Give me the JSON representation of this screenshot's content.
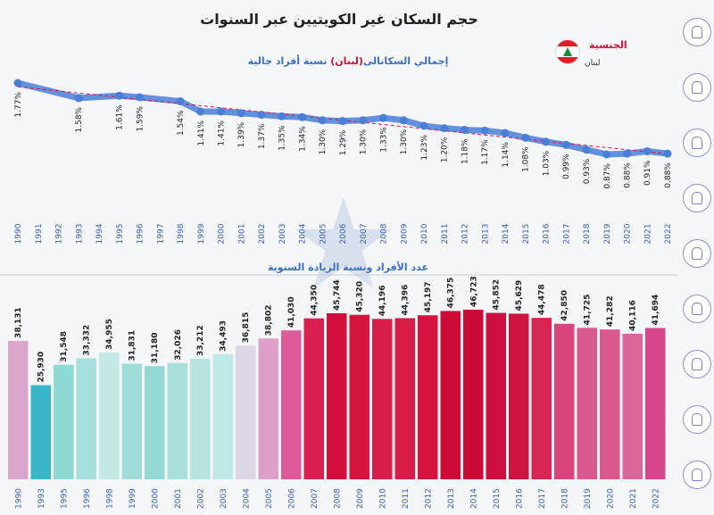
{
  "title": "حجم السكان غير الكويتيين عبر السنوات",
  "nationality": {
    "label": "الجنسية",
    "value": "لبنان"
  },
  "sidebar_icons": [
    "family-icon",
    "network-icon",
    "growth-chart-icon",
    "population-icon",
    "group-icon",
    "people-icon",
    "community-icon",
    "education-icon",
    "home-icon"
  ],
  "colors": {
    "line": "#4a7fd8",
    "trend": "#e0103a",
    "title": "#222222",
    "accent": "#d0103a"
  },
  "chart_data": [
    {
      "type": "line",
      "subtitle_prefix": "إجمالي السكان",
      "subtitle_mid": "الى",
      "subtitle_country": "(لبنان)",
      "subtitle_suffix": "نسبة أفراد جالية",
      "x": [
        "1990",
        "1991",
        "1992",
        "1993",
        "1994",
        "1995",
        "1996",
        "1997",
        "1998",
        "1999",
        "2000",
        "2001",
        "2002",
        "2003",
        "2004",
        "2005",
        "2006",
        "2007",
        "2008",
        "2009",
        "2010",
        "2011",
        "2012",
        "2013",
        "2014",
        "2015",
        "2016",
        "2017",
        "2018",
        "2019",
        "2020",
        "2021",
        "2022"
      ],
      "points": [
        {
          "year": "1990",
          "value": 1.77,
          "label": "1.77%"
        },
        {
          "year": "1993",
          "value": 1.58,
          "label": "1.58%"
        },
        {
          "year": "1995",
          "value": 1.61,
          "label": "1.61%"
        },
        {
          "year": "1996",
          "value": 1.59,
          "label": "1.59%"
        },
        {
          "year": "1998",
          "value": 1.54,
          "label": "1.54%"
        },
        {
          "year": "1999",
          "value": 1.41,
          "label": "1.41%"
        },
        {
          "year": "2000",
          "value": 1.41,
          "label": "1.41%"
        },
        {
          "year": "2001",
          "value": 1.39,
          "label": "1.39%"
        },
        {
          "year": "2002",
          "value": 1.37,
          "label": "1.37%"
        },
        {
          "year": "2003",
          "value": 1.35,
          "label": "1.35%"
        },
        {
          "year": "2004",
          "value": 1.34,
          "label": "1.34%"
        },
        {
          "year": "2005",
          "value": 1.3,
          "label": "1.30%"
        },
        {
          "year": "2006",
          "value": 1.29,
          "label": "1.29%"
        },
        {
          "year": "2007",
          "value": 1.3,
          "label": "1.30%"
        },
        {
          "year": "2008",
          "value": 1.33,
          "label": "1.33%"
        },
        {
          "year": "2009",
          "value": 1.3,
          "label": "1.30%"
        },
        {
          "year": "2010",
          "value": 1.23,
          "label": "1.23%"
        },
        {
          "year": "2011",
          "value": 1.2,
          "label": "1.20%"
        },
        {
          "year": "2012",
          "value": 1.18,
          "label": "1.18%"
        },
        {
          "year": "2013",
          "value": 1.17,
          "label": "1.17%"
        },
        {
          "year": "2014",
          "value": 1.14,
          "label": "1.14%"
        },
        {
          "year": "2015",
          "value": 1.08,
          "label": "1.08%"
        },
        {
          "year": "2016",
          "value": 1.03,
          "label": "1.03%"
        },
        {
          "year": "2017",
          "value": 0.99,
          "label": "0.99%"
        },
        {
          "year": "2018",
          "value": 0.93,
          "label": "0.93%"
        },
        {
          "year": "2019",
          "value": 0.87,
          "label": "0.87%"
        },
        {
          "year": "2020",
          "value": 0.88,
          "label": "0.88%"
        },
        {
          "year": "2021",
          "value": 0.91,
          "label": "0.91%"
        },
        {
          "year": "2022",
          "value": 0.88,
          "label": "0.88%"
        }
      ],
      "ylim": [
        0.8,
        1.8
      ],
      "trendline": true
    },
    {
      "type": "bar",
      "subtitle": "عدد الأفراد ونسبة الزيادة السنوية",
      "categories": [
        "1990",
        "1993",
        "1995",
        "1996",
        "1998",
        "1999",
        "2000",
        "2001",
        "2002",
        "2003",
        "2004",
        "2005",
        "2006",
        "2007",
        "2008",
        "2009",
        "2010",
        "2011",
        "2012",
        "2013",
        "2014",
        "2015",
        "2016",
        "2017",
        "2018",
        "2019",
        "2020",
        "2021",
        "2022"
      ],
      "values": [
        38131,
        25930,
        31548,
        33332,
        34955,
        31831,
        31180,
        32026,
        33212,
        34493,
        36815,
        38802,
        41030,
        44350,
        45744,
        45320,
        44196,
        44396,
        45197,
        46375,
        46723,
        45852,
        45629,
        44478,
        42850,
        41725,
        41282,
        40116,
        41694
      ],
      "labels": [
        "38,131",
        "25,930",
        "31,548",
        "33,332",
        "34,955",
        "31,831",
        "31,180",
        "32,026",
        "33,212",
        "34,493",
        "36,815",
        "38,802",
        "41,030",
        "44,350",
        "45,744",
        "45,320",
        "44,196",
        "44,396",
        "45,197",
        "46,375",
        "46,723",
        "45,852",
        "45,629",
        "44,478",
        "42,850",
        "41,725",
        "41,282",
        "40,116",
        "41,694"
      ],
      "colors": [
        "#dba8cc",
        "#3bb6c8",
        "#8fd9d4",
        "#a6e0dc",
        "#c3e8e4",
        "#9fdcd8",
        "#93d8d4",
        "#a8e0dc",
        "#b6e4e0",
        "#c0e8e4",
        "#ddd6e6",
        "#dea0c6",
        "#de5a98",
        "#da2050",
        "#d0103a",
        "#d4163e",
        "#d81e48",
        "#d81c46",
        "#d4143f",
        "#cc0b36",
        "#c80a35",
        "#ce1040",
        "#d01442",
        "#d82452",
        "#d8447c",
        "#d85a8c",
        "#d85a8c",
        "#d8689a",
        "#d8448a"
      ],
      "ylim": [
        0,
        50000
      ]
    }
  ]
}
